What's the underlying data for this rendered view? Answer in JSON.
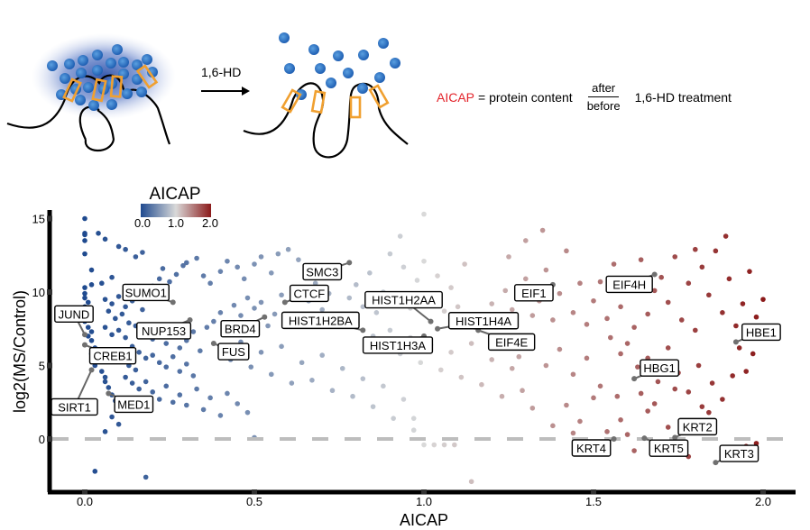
{
  "schematic": {
    "treatment_label": "1,6-HD",
    "formula": {
      "term": "AICAP",
      "term_color": "#e3242b",
      "equals_text": "= protein content",
      "numerator": "after",
      "denominator": "before",
      "suffix": "1,6-HD treatment"
    }
  },
  "chart_data": {
    "type": "scatter",
    "title": "",
    "xlabel": "AICAP",
    "ylabel": "log2(MS/Control)",
    "xlim": [
      -0.1,
      2.1
    ],
    "ylim": [
      -3.5,
      16.5
    ],
    "xticks": [
      0.0,
      0.5,
      1.0,
      1.5,
      2.0
    ],
    "xtick_labels": [
      "0.0",
      "0.5",
      "1.0",
      "1.5",
      "2.0"
    ],
    "yticks": [
      0,
      5,
      10,
      15
    ],
    "ytick_labels": [
      "0",
      "5",
      "10",
      "15"
    ],
    "grid": false,
    "reference_line": {
      "y": 0,
      "style": "dashed",
      "color": "#bdbdbd"
    },
    "colorbar": {
      "title": "AICAP",
      "range": [
        0.0,
        2.0
      ],
      "tick_labels": [
        "0.0",
        "1.0",
        "2.0"
      ],
      "low_color": "#1f4a8f",
      "mid_color": "#d9d9d9",
      "high_color": "#8b1a1a",
      "placement": "top-left"
    },
    "labeled_genes": [
      {
        "name": "JUND",
        "x": 0.0,
        "y": 7.1
      },
      {
        "name": "SIRT1",
        "x": 0.02,
        "y": 4.7
      },
      {
        "name": "CREB1",
        "x": 0.0,
        "y": 6.4
      },
      {
        "name": "MED1",
        "x": 0.07,
        "y": 3.1
      },
      {
        "name": "SUMO1",
        "x": 0.26,
        "y": 9.3
      },
      {
        "name": "NUP153",
        "x": 0.31,
        "y": 8.1
      },
      {
        "name": "BRD4",
        "x": 0.53,
        "y": 8.3
      },
      {
        "name": "FUS",
        "x": 0.38,
        "y": 6.5
      },
      {
        "name": "SMC3",
        "x": 0.78,
        "y": 12.0
      },
      {
        "name": "CTCF",
        "x": 0.59,
        "y": 9.3
      },
      {
        "name": "HIST1H2BA",
        "x": 0.82,
        "y": 7.4
      },
      {
        "name": "HIST1H2AA",
        "x": 1.02,
        "y": 8.0
      },
      {
        "name": "HIST1H3A",
        "x": 1.0,
        "y": 7.0
      },
      {
        "name": "HIST1H4A",
        "x": 1.04,
        "y": 7.5
      },
      {
        "name": "EIF4E",
        "x": 1.16,
        "y": 7.4
      },
      {
        "name": "EIF1",
        "x": 1.38,
        "y": 10.5
      },
      {
        "name": "EIF4H",
        "x": 1.68,
        "y": 11.2
      },
      {
        "name": "HBE1",
        "x": 1.92,
        "y": 6.6
      },
      {
        "name": "HBG1",
        "x": 1.62,
        "y": 4.1
      },
      {
        "name": "KRT2",
        "x": 1.74,
        "y": 0.1
      },
      {
        "name": "KRT4",
        "x": 1.56,
        "y": 0.0
      },
      {
        "name": "KRT5",
        "x": 1.65,
        "y": 0.05
      },
      {
        "name": "KRT3",
        "x": 1.86,
        "y": -1.6
      }
    ],
    "points": [
      [
        0.0,
        15.0
      ],
      [
        0.0,
        14.0
      ],
      [
        0.0,
        13.9
      ],
      [
        0.0,
        13.5
      ],
      [
        0.04,
        14.0
      ],
      [
        0.0,
        12.6
      ],
      [
        0.06,
        13.6
      ],
      [
        0.1,
        13.1
      ],
      [
        0.12,
        12.9
      ],
      [
        0.02,
        11.5
      ],
      [
        0.15,
        12.4
      ],
      [
        0.17,
        12.7
      ],
      [
        0.08,
        11.0
      ],
      [
        0.0,
        10.3
      ],
      [
        0.02,
        10.5
      ],
      [
        0.05,
        10.6
      ],
      [
        0.0,
        9.9
      ],
      [
        0.0,
        9.6
      ],
      [
        0.01,
        9.3
      ],
      [
        0.0,
        9.0
      ],
      [
        0.0,
        8.6
      ],
      [
        0.01,
        8.3
      ],
      [
        0.0,
        8.0
      ],
      [
        0.01,
        7.6
      ],
      [
        0.02,
        7.3
      ],
      [
        0.01,
        7.0
      ],
      [
        0.02,
        6.7
      ],
      [
        0.03,
        6.2
      ],
      [
        0.02,
        5.8
      ],
      [
        0.04,
        5.4
      ],
      [
        0.03,
        5.0
      ],
      [
        0.05,
        4.6
      ],
      [
        0.06,
        4.2
      ],
      [
        0.06,
        3.9
      ],
      [
        0.07,
        3.5
      ],
      [
        0.08,
        3.0
      ],
      [
        0.09,
        2.6
      ],
      [
        0.1,
        2.2
      ],
      [
        0.08,
        1.5
      ],
      [
        0.1,
        1.0
      ],
      [
        0.06,
        0.5
      ],
      [
        0.03,
        -2.2
      ],
      [
        0.18,
        -2.6
      ],
      [
        0.06,
        9.5
      ],
      [
        0.08,
        9.2
      ],
      [
        0.1,
        9.7
      ],
      [
        0.12,
        9.0
      ],
      [
        0.14,
        9.4
      ],
      [
        0.07,
        8.7
      ],
      [
        0.09,
        8.2
      ],
      [
        0.11,
        8.5
      ],
      [
        0.13,
        7.9
      ],
      [
        0.06,
        7.6
      ],
      [
        0.08,
        7.1
      ],
      [
        0.1,
        7.4
      ],
      [
        0.12,
        6.9
      ],
      [
        0.15,
        7.7
      ],
      [
        0.17,
        8.8
      ],
      [
        0.19,
        9.9
      ],
      [
        0.2,
        10.4
      ],
      [
        0.22,
        10.9
      ],
      [
        0.16,
        10.2
      ],
      [
        0.23,
        11.6
      ],
      [
        0.25,
        10.7
      ],
      [
        0.27,
        11.2
      ],
      [
        0.3,
        12.0
      ],
      [
        0.33,
        12.3
      ],
      [
        0.29,
        11.8
      ],
      [
        0.35,
        11.1
      ],
      [
        0.37,
        10.6
      ],
      [
        0.4,
        11.4
      ],
      [
        0.42,
        12.1
      ],
      [
        0.45,
        11.7
      ],
      [
        0.47,
        10.9
      ],
      [
        0.5,
        11.9
      ],
      [
        0.52,
        12.4
      ],
      [
        0.55,
        11.3
      ],
      [
        0.57,
        12.6
      ],
      [
        0.6,
        12.9
      ],
      [
        0.63,
        12.2
      ],
      [
        0.18,
        7.2
      ],
      [
        0.2,
        6.8
      ],
      [
        0.22,
        7.5
      ],
      [
        0.24,
        6.5
      ],
      [
        0.26,
        7.0
      ],
      [
        0.28,
        6.2
      ],
      [
        0.3,
        6.7
      ],
      [
        0.32,
        7.3
      ],
      [
        0.34,
        6.0
      ],
      [
        0.36,
        7.6
      ],
      [
        0.14,
        6.3
      ],
      [
        0.16,
        5.9
      ],
      [
        0.18,
        5.5
      ],
      [
        0.2,
        5.7
      ],
      [
        0.22,
        5.2
      ],
      [
        0.24,
        4.9
      ],
      [
        0.26,
        5.6
      ],
      [
        0.28,
        4.6
      ],
      [
        0.3,
        5.1
      ],
      [
        0.32,
        4.3
      ],
      [
        0.13,
        5.0
      ],
      [
        0.15,
        4.7
      ],
      [
        0.12,
        4.2
      ],
      [
        0.14,
        3.8
      ],
      [
        0.16,
        3.4
      ],
      [
        0.18,
        3.9
      ],
      [
        0.2,
        3.2
      ],
      [
        0.22,
        2.7
      ],
      [
        0.24,
        3.6
      ],
      [
        0.26,
        2.5
      ],
      [
        0.28,
        3.0
      ],
      [
        0.3,
        2.3
      ],
      [
        0.33,
        3.4
      ],
      [
        0.35,
        2.0
      ],
      [
        0.37,
        2.8
      ],
      [
        0.4,
        1.6
      ],
      [
        0.42,
        3.1
      ],
      [
        0.45,
        2.4
      ],
      [
        0.48,
        1.8
      ],
      [
        0.5,
        0.1
      ],
      [
        0.38,
        8.0
      ],
      [
        0.4,
        8.6
      ],
      [
        0.42,
        7.8
      ],
      [
        0.44,
        9.1
      ],
      [
        0.46,
        8.4
      ],
      [
        0.48,
        9.6
      ],
      [
        0.5,
        8.9
      ],
      [
        0.52,
        9.3
      ],
      [
        0.54,
        7.7
      ],
      [
        0.56,
        8.5
      ],
      [
        0.58,
        9.8
      ],
      [
        0.6,
        8.2
      ],
      [
        0.62,
        10.1
      ],
      [
        0.64,
        7.9
      ],
      [
        0.66,
        9.4
      ],
      [
        0.68,
        10.6
      ],
      [
        0.7,
        8.8
      ],
      [
        0.72,
        9.9
      ],
      [
        0.74,
        11.0
      ],
      [
        0.76,
        8.3
      ],
      [
        0.4,
        6.1
      ],
      [
        0.43,
        5.4
      ],
      [
        0.46,
        6.6
      ],
      [
        0.49,
        4.9
      ],
      [
        0.52,
        5.9
      ],
      [
        0.55,
        4.4
      ],
      [
        0.58,
        6.3
      ],
      [
        0.61,
        3.8
      ],
      [
        0.64,
        5.2
      ],
      [
        0.67,
        4.0
      ],
      [
        0.7,
        5.7
      ],
      [
        0.73,
        3.3
      ],
      [
        0.76,
        4.8
      ],
      [
        0.79,
        2.9
      ],
      [
        0.82,
        4.1
      ],
      [
        0.85,
        2.2
      ],
      [
        0.88,
        3.6
      ],
      [
        0.91,
        1.4
      ],
      [
        0.94,
        2.7
      ],
      [
        0.97,
        0.6
      ],
      [
        0.78,
        9.6
      ],
      [
        0.8,
        10.5
      ],
      [
        0.82,
        9.0
      ],
      [
        0.84,
        11.3
      ],
      [
        0.86,
        8.6
      ],
      [
        0.88,
        10.0
      ],
      [
        0.9,
        12.6
      ],
      [
        0.92,
        9.3
      ],
      [
        0.94,
        11.7
      ],
      [
        0.96,
        8.9
      ],
      [
        0.98,
        10.8
      ],
      [
        1.0,
        12.1
      ],
      [
        1.02,
        9.5
      ],
      [
        1.04,
        11.1
      ],
      [
        1.06,
        8.7
      ],
      [
        1.08,
        10.3
      ],
      [
        1.1,
        9.0
      ],
      [
        1.12,
        11.9
      ],
      [
        1.0,
        15.3
      ],
      [
        0.93,
        13.8
      ],
      [
        0.85,
        7.0
      ],
      [
        0.88,
        6.3
      ],
      [
        0.9,
        7.4
      ],
      [
        0.93,
        5.8
      ],
      [
        0.96,
        6.9
      ],
      [
        0.99,
        5.2
      ],
      [
        1.02,
        6.4
      ],
      [
        1.05,
        4.7
      ],
      [
        1.08,
        5.9
      ],
      [
        1.11,
        4.2
      ],
      [
        1.14,
        6.5
      ],
      [
        1.17,
        3.7
      ],
      [
        1.2,
        5.4
      ],
      [
        1.23,
        2.9
      ],
      [
        1.26,
        4.8
      ],
      [
        1.29,
        3.3
      ],
      [
        1.32,
        2.1
      ],
      [
        1.0,
        -0.4
      ],
      [
        1.03,
        -0.4
      ],
      [
        1.06,
        -0.4
      ],
      [
        1.09,
        -0.4
      ],
      [
        1.14,
        -2.9
      ],
      [
        0.97,
        1.4
      ],
      [
        1.15,
        7.6
      ],
      [
        1.18,
        8.3
      ],
      [
        1.2,
        9.2
      ],
      [
        1.22,
        8.0
      ],
      [
        1.24,
        10.1
      ],
      [
        1.26,
        8.8
      ],
      [
        1.28,
        9.7
      ],
      [
        1.3,
        10.9
      ],
      [
        1.32,
        8.4
      ],
      [
        1.34,
        9.4
      ],
      [
        1.36,
        11.5
      ],
      [
        1.38,
        8.1
      ],
      [
        1.4,
        9.9
      ],
      [
        1.42,
        12.8
      ],
      [
        1.44,
        8.6
      ],
      [
        1.46,
        10.6
      ],
      [
        1.48,
        7.8
      ],
      [
        1.3,
        13.5
      ],
      [
        1.35,
        14.2
      ],
      [
        1.25,
        12.4
      ],
      [
        1.2,
        6.8
      ],
      [
        1.24,
        6.2
      ],
      [
        1.28,
        5.6
      ],
      [
        1.32,
        6.9
      ],
      [
        1.36,
        5.0
      ],
      [
        1.4,
        6.1
      ],
      [
        1.44,
        4.4
      ],
      [
        1.48,
        5.5
      ],
      [
        1.52,
        3.6
      ],
      [
        1.42,
        2.3
      ],
      [
        1.46,
        1.2
      ],
      [
        1.5,
        2.8
      ],
      [
        1.54,
        0.5
      ],
      [
        1.38,
        0.9
      ],
      [
        1.44,
        0.4
      ],
      [
        1.52,
        -0.3
      ],
      [
        1.58,
        1.3
      ],
      [
        1.5,
        9.4
      ],
      [
        1.52,
        10.7
      ],
      [
        1.54,
        8.2
      ],
      [
        1.56,
        11.9
      ],
      [
        1.58,
        9.0
      ],
      [
        1.6,
        10.4
      ],
      [
        1.62,
        7.6
      ],
      [
        1.64,
        12.2
      ],
      [
        1.66,
        8.5
      ],
      [
        1.68,
        10.1
      ],
      [
        1.55,
        6.9
      ],
      [
        1.58,
        5.8
      ],
      [
        1.6,
        6.5
      ],
      [
        1.63,
        4.9
      ],
      [
        1.66,
        5.5
      ],
      [
        1.69,
        3.9
      ],
      [
        1.72,
        6.2
      ],
      [
        1.75,
        4.5
      ],
      [
        1.78,
        3.2
      ],
      [
        1.81,
        5.0
      ],
      [
        1.7,
        11.0
      ],
      [
        1.72,
        9.3
      ],
      [
        1.74,
        12.4
      ],
      [
        1.76,
        8.1
      ],
      [
        1.78,
        10.6
      ],
      [
        1.8,
        7.4
      ],
      [
        1.82,
        11.7
      ],
      [
        1.84,
        9.8
      ],
      [
        1.86,
        12.8
      ],
      [
        1.88,
        8.6
      ],
      [
        1.9,
        10.9
      ],
      [
        1.92,
        7.7
      ],
      [
        1.94,
        9.2
      ],
      [
        1.96,
        11.4
      ],
      [
        1.98,
        8.3
      ],
      [
        2.0,
        9.5
      ],
      [
        1.99,
        7.1
      ],
      [
        1.97,
        5.8
      ],
      [
        1.95,
        4.6
      ],
      [
        1.93,
        6.2
      ],
      [
        1.89,
        13.8
      ],
      [
        1.8,
        12.9
      ],
      [
        1.85,
        3.8
      ],
      [
        1.88,
        2.7
      ],
      [
        1.91,
        4.3
      ],
      [
        1.84,
        1.8
      ],
      [
        1.76,
        1.1
      ],
      [
        1.72,
        0.8
      ],
      [
        1.7,
        -0.5
      ],
      [
        1.78,
        -1.2
      ],
      [
        1.98,
        -0.3
      ],
      [
        1.95,
        -0.5
      ],
      [
        1.62,
        -0.8
      ],
      [
        1.6,
        0.3
      ],
      [
        1.68,
        2.4
      ],
      [
        1.74,
        3.4
      ],
      [
        1.66,
        1.9
      ],
      [
        1.57,
        2.9
      ],
      [
        1.64,
        3.1
      ],
      [
        1.82,
        2.2
      ]
    ]
  }
}
